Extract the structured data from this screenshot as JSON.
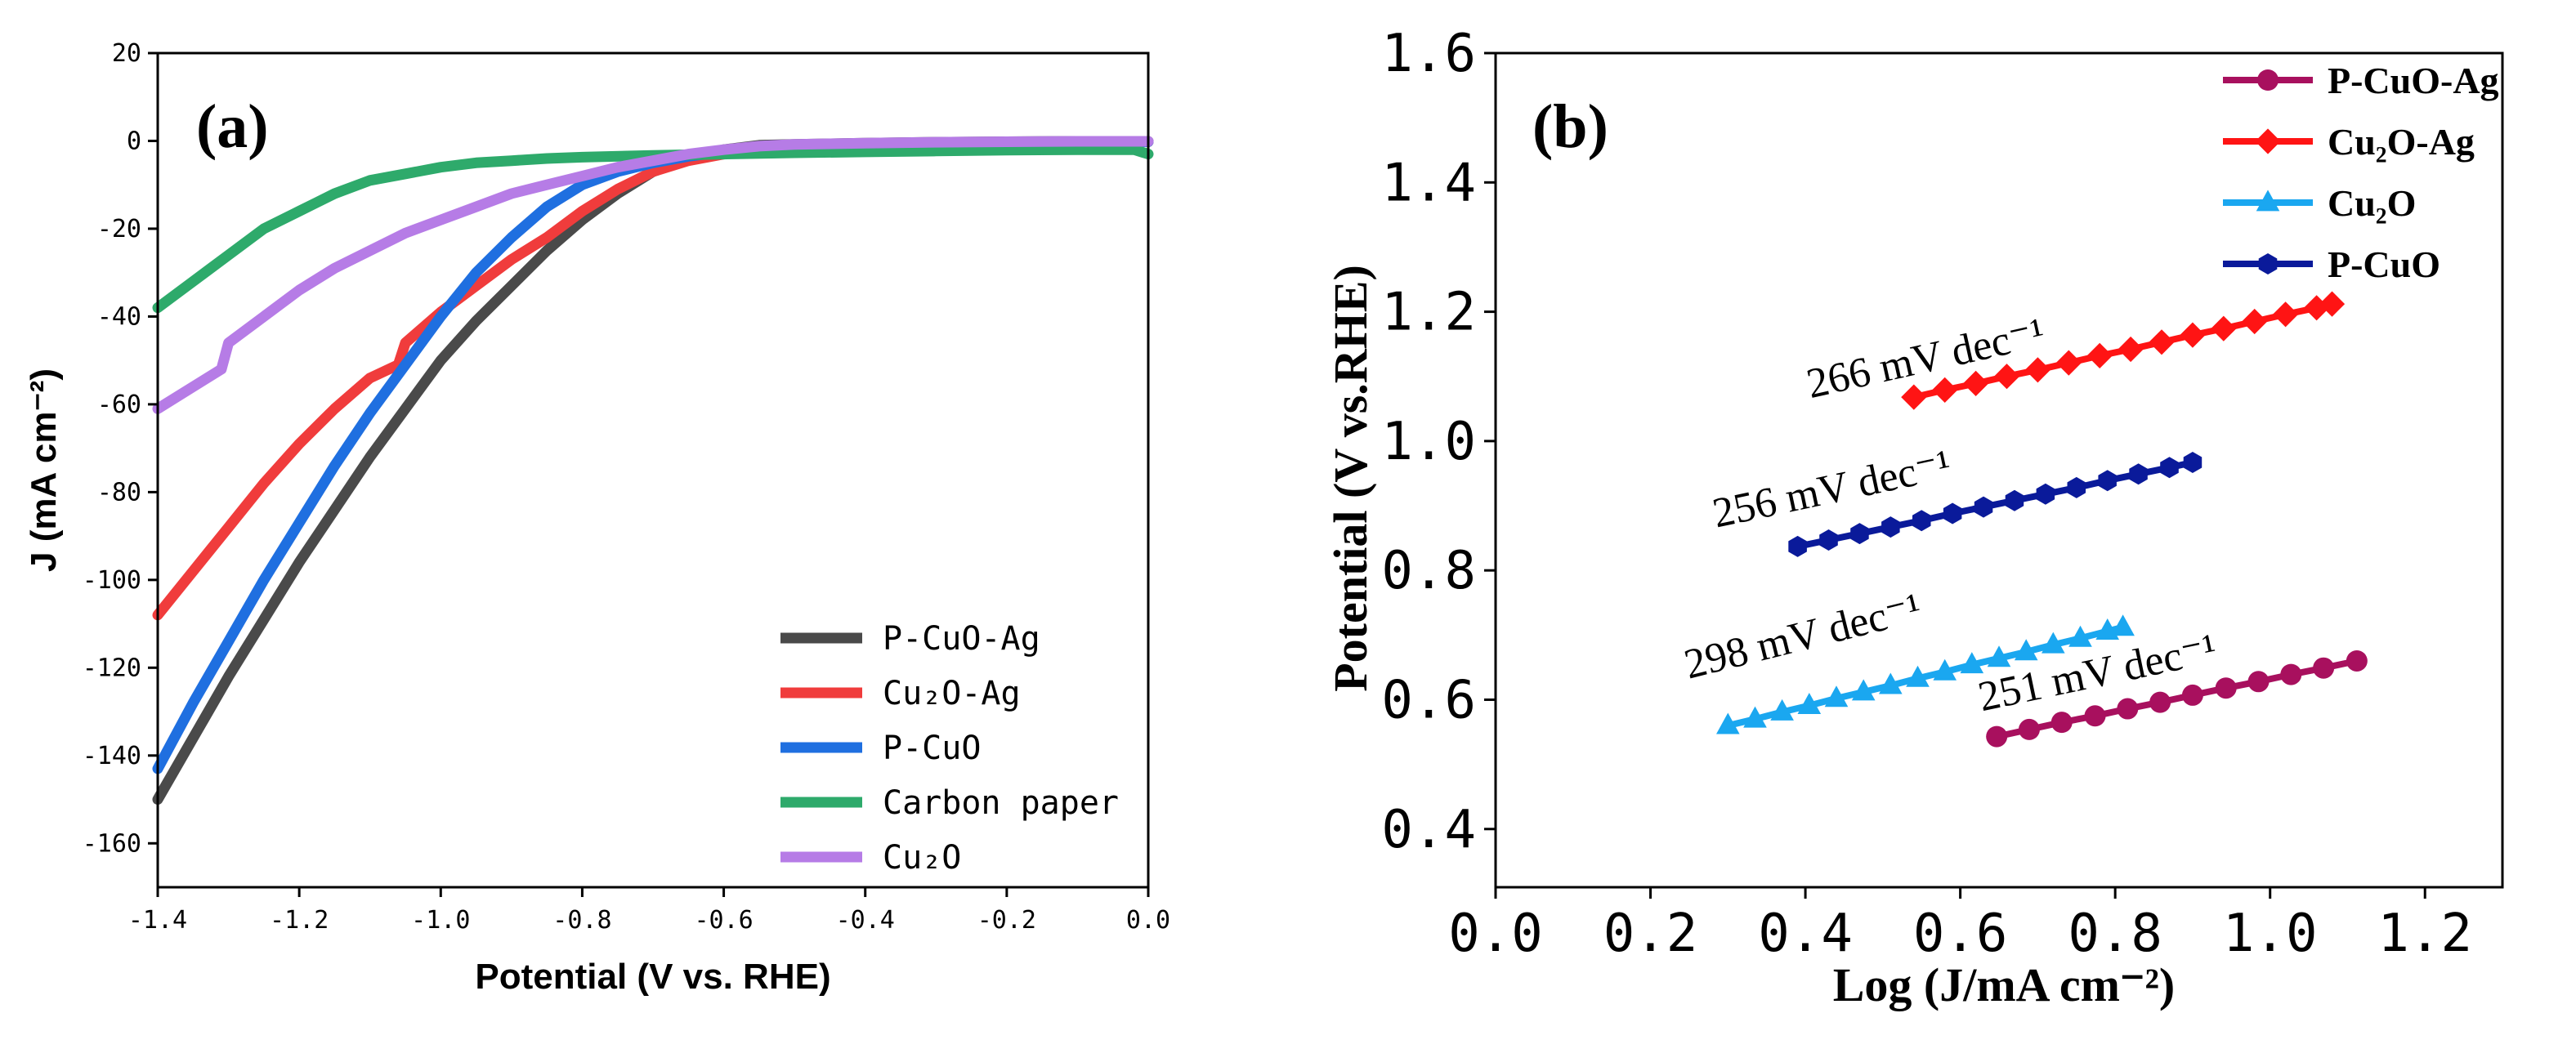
{
  "chart_data": [
    {
      "type": "line",
      "panel_label": "(a)",
      "title": "",
      "xlabel": "Potential  (V vs. RHE)",
      "ylabel": "J (mA cm⁻²)",
      "xlim": [
        -1.4,
        0.0
      ],
      "ylim": [
        -170,
        20
      ],
      "xticks": [
        -1.4,
        -1.2,
        -1.0,
        -0.8,
        -0.6,
        -0.4,
        -0.2,
        0.0
      ],
      "xtick_labels": [
        "-1.4",
        "-1.2",
        "-1.0",
        "-0.8",
        "-0.6",
        "-0.4",
        "-0.2",
        "0.0"
      ],
      "yticks": [
        20,
        0,
        -20,
        -40,
        -60,
        -80,
        -100,
        -120,
        -140,
        -160
      ],
      "ytick_labels": [
        "20",
        "0",
        "-20",
        "-40",
        "-60",
        "-80",
        "-100",
        "-120",
        "-140",
        "-160"
      ],
      "legend_position": "bottom-right",
      "series": [
        {
          "name": "P-CuO-Ag",
          "color": "#4a4a4a",
          "x": [
            -1.4,
            -1.35,
            -1.3,
            -1.25,
            -1.2,
            -1.15,
            -1.1,
            -1.05,
            -1.0,
            -0.95,
            -0.9,
            -0.85,
            -0.8,
            -0.75,
            -0.7,
            -0.65,
            -0.6,
            -0.55,
            -0.5,
            -0.4,
            -0.3,
            -0.2,
            -0.1,
            0.0
          ],
          "y": [
            -150,
            -136,
            -122,
            -109,
            -96,
            -84,
            -72,
            -61,
            -50,
            -41,
            -33,
            -25,
            -18,
            -12,
            -7,
            -4,
            -2,
            -1,
            -0.8,
            -0.5,
            -0.3,
            -0.2,
            -0.1,
            -0.1
          ]
        },
        {
          "name": "Cu₂O-Ag",
          "color": "#f03c3c",
          "x": [
            -1.4,
            -1.35,
            -1.3,
            -1.25,
            -1.2,
            -1.15,
            -1.1,
            -1.06,
            -1.05,
            -1.0,
            -0.95,
            -0.9,
            -0.85,
            -0.8,
            -0.75,
            -0.7,
            -0.65,
            -0.6,
            -0.55,
            -0.5,
            -0.4,
            -0.3,
            -0.2,
            -0.1,
            0.0
          ],
          "y": [
            -108,
            -98,
            -88,
            -78,
            -69,
            -61,
            -54,
            -51,
            -46,
            -39,
            -33,
            -27,
            -22,
            -16,
            -11,
            -7,
            -4.5,
            -3,
            -2,
            -1.2,
            -0.8,
            -0.5,
            -0.3,
            -0.2,
            -0.2
          ]
        },
        {
          "name": "P-CuO",
          "color": "#1f6fe0",
          "x": [
            -1.4,
            -1.35,
            -1.3,
            -1.25,
            -1.2,
            -1.15,
            -1.1,
            -1.05,
            -1.0,
            -0.95,
            -0.9,
            -0.85,
            -0.8,
            -0.75,
            -0.7,
            -0.65,
            -0.6,
            -0.55,
            -0.5,
            -0.4,
            -0.3,
            -0.2,
            -0.1,
            0.0
          ],
          "y": [
            -143,
            -128,
            -114,
            -100,
            -87,
            -74,
            -62,
            -51,
            -40,
            -30,
            -22,
            -15,
            -10,
            -7,
            -5,
            -3.5,
            -2.5,
            -1.8,
            -1.2,
            -0.7,
            -0.5,
            -0.3,
            -0.2,
            -0.2
          ]
        },
        {
          "name": "Carbon paper",
          "color": "#2eaa6b",
          "x": [
            -1.4,
            -1.35,
            -1.3,
            -1.25,
            -1.2,
            -1.15,
            -1.1,
            -1.05,
            -1.0,
            -0.95,
            -0.9,
            -0.85,
            -0.8,
            -0.7,
            -0.6,
            -0.5,
            -0.4,
            -0.3,
            -0.2,
            -0.1,
            -0.02,
            0.0
          ],
          "y": [
            -38,
            -32,
            -26,
            -20,
            -16,
            -12,
            -9,
            -7.5,
            -6,
            -5,
            -4.5,
            -4,
            -3.7,
            -3.3,
            -3,
            -2.7,
            -2.5,
            -2.3,
            -2.1,
            -2,
            -2,
            -3
          ]
        },
        {
          "name": "Cu₂O",
          "color": "#b67ce6",
          "x": [
            -1.4,
            -1.35,
            -1.31,
            -1.3,
            -1.25,
            -1.2,
            -1.15,
            -1.1,
            -1.05,
            -1.0,
            -0.95,
            -0.9,
            -0.85,
            -0.8,
            -0.75,
            -0.7,
            -0.65,
            -0.6,
            -0.55,
            -0.5,
            -0.4,
            -0.3,
            -0.2,
            -0.1,
            0.0
          ],
          "y": [
            -61,
            -56,
            -52,
            -46,
            -40,
            -34,
            -29,
            -25,
            -21,
            -18,
            -15,
            -12,
            -10,
            -8,
            -6,
            -4.5,
            -3,
            -2,
            -1.2,
            -0.8,
            -0.5,
            -0.3,
            -0.2,
            -0.1,
            -0.1
          ]
        }
      ]
    },
    {
      "type": "scatter",
      "panel_label": "(b)",
      "title": "",
      "xlabel": "Log (J/mA cm⁻²)",
      "ylabel": "Potential (V vs.RHE)",
      "xlim": [
        0.0,
        1.3
      ],
      "ylim": [
        0.31,
        1.6
      ],
      "xticks": [
        0.0,
        0.2,
        0.4,
        0.6,
        0.8,
        1.0,
        1.2
      ],
      "xtick_labels": [
        "0.0",
        "0.2",
        "0.4",
        "0.6",
        "0.8",
        "1.0",
        "1.2"
      ],
      "yticks": [
        0.4,
        0.6,
        0.8,
        1.0,
        1.2,
        1.4,
        1.6
      ],
      "ytick_labels": [
        "0.4",
        "0.6",
        "0.8",
        "1.0",
        "1.2",
        "1.4",
        "1.6"
      ],
      "legend_position": "top-right",
      "series": [
        {
          "name": "P-CuO-Ag",
          "color": "#a8105e",
          "marker": "circle",
          "x": [
            0.647,
            0.689,
            0.731,
            0.774,
            0.816,
            0.858,
            0.9,
            0.943,
            0.985,
            1.027,
            1.069,
            1.112
          ],
          "y": [
            0.543,
            0.554,
            0.565,
            0.575,
            0.586,
            0.596,
            0.607,
            0.618,
            0.628,
            0.639,
            0.649,
            0.66
          ],
          "slope_label": "251 mV dec⁻¹"
        },
        {
          "name": "Cu₂O-Ag",
          "color": "#ff1414",
          "marker": "diamond",
          "x": [
            0.54,
            0.58,
            0.62,
            0.66,
            0.7,
            0.74,
            0.78,
            0.82,
            0.86,
            0.9,
            0.94,
            0.98,
            1.02,
            1.06,
            1.08
          ],
          "y": [
            1.068,
            1.079,
            1.089,
            1.1,
            1.11,
            1.121,
            1.132,
            1.142,
            1.153,
            1.164,
            1.174,
            1.185,
            1.196,
            1.206,
            1.212
          ],
          "slope_label": "266 mV dec⁻¹"
        },
        {
          "name": "Cu₂O",
          "color": "#1aa7f0",
          "marker": "triangle",
          "x": [
            0.3,
            0.335,
            0.37,
            0.405,
            0.44,
            0.475,
            0.51,
            0.545,
            0.58,
            0.615,
            0.65,
            0.685,
            0.72,
            0.755,
            0.79,
            0.81
          ],
          "y": [
            0.56,
            0.57,
            0.581,
            0.591,
            0.602,
            0.612,
            0.622,
            0.633,
            0.643,
            0.654,
            0.664,
            0.674,
            0.685,
            0.695,
            0.706,
            0.712
          ],
          "slope_label": "298 mV dec⁻¹"
        },
        {
          "name": "P-CuO",
          "color": "#0a1a9a",
          "marker": "hexagon",
          "x": [
            0.39,
            0.43,
            0.47,
            0.51,
            0.55,
            0.59,
            0.63,
            0.67,
            0.71,
            0.75,
            0.79,
            0.83,
            0.87,
            0.9
          ],
          "y": [
            0.837,
            0.847,
            0.857,
            0.867,
            0.877,
            0.888,
            0.898,
            0.908,
            0.918,
            0.928,
            0.939,
            0.949,
            0.959,
            0.967
          ],
          "slope_label": "256 mV dec⁻¹"
        }
      ]
    }
  ]
}
